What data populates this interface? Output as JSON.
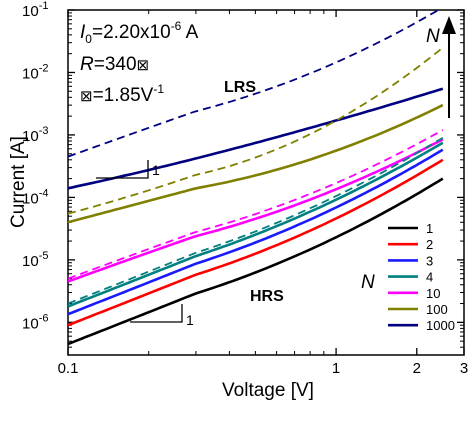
{
  "chart_data": {
    "type": "line",
    "xlabel": "Voltage [V]",
    "ylabel": "Current [A]",
    "xscale": "log",
    "yscale": "log",
    "xlim": [
      0.1,
      3
    ],
    "ylim": [
      3e-07,
      0.1
    ],
    "x_ticks": [
      {
        "value": 0.1,
        "label": "0.1"
      },
      {
        "value": 1,
        "label": "1"
      },
      {
        "value": 2,
        "label": "2"
      },
      {
        "value": 3,
        "label": "3"
      }
    ],
    "y_ticks": [
      {
        "value": 1e-06,
        "base": "10",
        "exp": "-6"
      },
      {
        "value": 1e-05,
        "base": "10",
        "exp": "-5"
      },
      {
        "value": 0.0001,
        "base": "10",
        "exp": "-4"
      },
      {
        "value": 0.001,
        "base": "10",
        "exp": "-3"
      },
      {
        "value": 0.01,
        "base": "10",
        "exp": "-2"
      },
      {
        "value": 0.1,
        "base": "10",
        "exp": "-1"
      }
    ],
    "legend_position": "bottom-right",
    "series": [
      {
        "name": "1",
        "color": "#000000",
        "style": "solid",
        "x": [
          0.1,
          0.3,
          1,
          2.5
        ],
        "y": [
          4.5e-07,
          2.9e-06,
          2.3e-05,
          0.0002
        ]
      },
      {
        "name": "2",
        "color": "#ff0000",
        "style": "solid",
        "x": [
          0.1,
          0.3,
          1,
          2.5
        ],
        "y": [
          9e-07,
          5.8e-06,
          4.6e-05,
          0.0004
        ]
      },
      {
        "name": "3",
        "color": "#1a1aff",
        "style": "solid",
        "x": [
          0.1,
          0.3,
          1,
          2.5
        ],
        "y": [
          1.35e-06,
          8.7e-06,
          6.9e-05,
          0.00058
        ]
      },
      {
        "name": "4",
        "color": "#008080",
        "style": "solid",
        "x": [
          0.1,
          0.3,
          1,
          2.5
        ],
        "y": [
          1.8e-06,
          1.15e-05,
          9.2e-05,
          0.00075
        ]
      },
      {
        "name": "10",
        "color": "#ff00ff",
        "style": "solid",
        "x": [
          0.1,
          0.3,
          1,
          2.5
        ],
        "y": [
          4.5e-06,
          2.4e-05,
          0.000135,
          0.00085
        ]
      },
      {
        "name": "100",
        "color": "#808000",
        "style": "solid",
        "x": [
          0.1,
          0.3,
          1,
          2.5
        ],
        "y": [
          4e-05,
          0.00014,
          0.00056,
          0.003
        ]
      },
      {
        "name": "1000",
        "color": "#000080",
        "style": "solid",
        "x": [
          0.1,
          0.3,
          1,
          2.5
        ],
        "y": [
          0.00014,
          0.00042,
          0.0017,
          0.0055
        ]
      },
      {
        "color": "#ff00ff",
        "style": "dashed",
        "x": [
          0.1,
          0.3,
          1,
          2.5
        ],
        "y": [
          5e-06,
          2.8e-05,
          0.00017,
          0.0012
        ]
      },
      {
        "color": "#008080",
        "style": "dashed",
        "x": [
          0.1,
          0.3,
          1,
          2.5
        ],
        "y": [
          2e-06,
          1.3e-05,
          0.000105,
          0.0009
        ]
      },
      {
        "color": "#808000",
        "style": "dashed",
        "x": [
          0.1,
          0.3,
          1,
          2.5
        ],
        "y": [
          5.5e-05,
          0.00023,
          0.0017,
          0.025
        ]
      },
      {
        "color": "#000080",
        "style": "dashed",
        "x": [
          0.1,
          0.3,
          1,
          2.5
        ],
        "y": [
          0.00045,
          0.0024,
          0.0145,
          0.11
        ]
      }
    ],
    "annotations": {
      "i0_prefix": "I",
      "i0_sub": "0",
      "i0_mid": "=2.20x10",
      "i0_exp": "-6",
      "i0_unit": " A",
      "r_label": "R",
      "r_rest": "=340",
      "r_glyph": "⊠",
      "alpha_glyph": "⊠",
      "alpha_mid": "=1.85V",
      "alpha_exp": "-1",
      "lrs": "LRS",
      "hrs": "HRS",
      "n_arrow_label": "N",
      "n_legend_label": "N",
      "slope_upper": "1",
      "slope_lower": "1"
    }
  }
}
